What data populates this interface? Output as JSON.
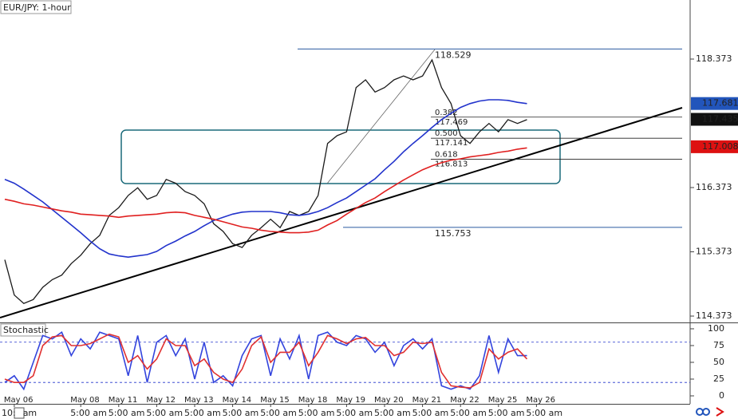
{
  "chart_data": [
    {
      "type": "line",
      "title": "EUR/JPY: 1-hour",
      "categories": [
        null,
        "May 06",
        null,
        null,
        null,
        null,
        null,
        null,
        "May 08",
        null,
        null,
        null,
        "May 11",
        null,
        null,
        null,
        "May 12",
        null,
        null,
        null,
        "May 13",
        null,
        null,
        null,
        "May 14",
        null,
        null,
        null,
        "May 15",
        null,
        null,
        null,
        "May 18",
        null,
        null,
        null,
        "May 19",
        null,
        null,
        null,
        "May 20",
        null,
        null,
        null,
        "May 21",
        null,
        null,
        null,
        "May 22",
        null,
        null,
        null,
        "May 25",
        null,
        null,
        null,
        "May 26"
      ],
      "time_labels": [
        "10:",
        null,
        null,
        "am",
        null,
        null,
        null,
        null,
        "5:00 am",
        null,
        null,
        null,
        "5:00 am",
        null,
        null,
        null,
        "5:00 am",
        null,
        null,
        null,
        "5:00 am",
        null,
        null,
        null,
        "5:00 am",
        null,
        null,
        null,
        "5:00 am",
        null,
        null,
        null,
        "5:00 am",
        null,
        null,
        null,
        "5:00 am",
        null,
        null,
        null,
        "5:00 am",
        null,
        null,
        null,
        "5:00 am",
        null,
        null,
        null,
        "5:00 am",
        null,
        null,
        null,
        "5:00 am",
        null,
        null,
        null,
        "5:00 am"
      ],
      "series": [
        {
          "color": "#1a1a1a",
          "values": [
            115.25,
            114.7,
            114.57,
            114.63,
            114.82,
            114.94,
            115.01,
            115.19,
            115.32,
            115.5,
            115.63,
            115.94,
            116.06,
            116.25,
            116.37,
            116.19,
            116.25,
            116.5,
            116.44,
            116.31,
            116.25,
            116.12,
            115.81,
            115.69,
            115.5,
            115.44,
            115.63,
            115.75,
            115.88,
            115.75,
            116.0,
            115.94,
            116.0,
            116.25,
            117.06,
            117.18,
            117.24,
            117.93,
            118.05,
            117.86,
            117.93,
            118.05,
            118.11,
            118.05,
            118.11,
            118.36,
            117.93,
            117.68,
            117.18,
            117.06,
            117.24,
            117.37,
            117.24,
            117.43,
            117.37,
            117.43,
            null
          ]
        },
        {
          "color": "#2233cc",
          "values": [
            116.5,
            116.44,
            116.35,
            116.25,
            116.15,
            116.03,
            115.91,
            115.79,
            115.67,
            115.54,
            115.42,
            115.34,
            115.31,
            115.29,
            115.31,
            115.33,
            115.38,
            115.47,
            115.54,
            115.62,
            115.69,
            115.78,
            115.86,
            115.91,
            115.96,
            115.99,
            116.0,
            116.0,
            116.0,
            115.98,
            115.95,
            115.94,
            115.96,
            116.0,
            116.06,
            116.14,
            116.21,
            116.31,
            116.41,
            116.51,
            116.65,
            116.78,
            116.93,
            117.06,
            117.18,
            117.31,
            117.43,
            117.53,
            117.62,
            117.68,
            117.72,
            117.74,
            117.74,
            117.73,
            117.7,
            117.68,
            null
          ]
        },
        {
          "color": "#e02020",
          "values": [
            116.19,
            116.16,
            116.12,
            116.1,
            116.07,
            116.04,
            116.01,
            115.99,
            115.96,
            115.95,
            115.94,
            115.93,
            115.91,
            115.93,
            115.94,
            115.95,
            115.96,
            115.98,
            115.99,
            115.98,
            115.94,
            115.91,
            115.88,
            115.84,
            115.8,
            115.76,
            115.74,
            115.71,
            115.69,
            115.68,
            115.67,
            115.67,
            115.68,
            115.71,
            115.79,
            115.86,
            115.96,
            116.05,
            116.14,
            116.21,
            116.31,
            116.4,
            116.49,
            116.57,
            116.65,
            116.71,
            116.76,
            116.8,
            116.82,
            116.85,
            116.87,
            116.89,
            116.92,
            116.94,
            116.97,
            116.99,
            null
          ]
        }
      ],
      "ylim": [
        114.274,
        119.292
      ],
      "yticks": [
        114.373,
        115.373,
        116.373,
        118.373
      ],
      "levels": [
        {
          "value": 118.529,
          "color": "#2a5aa0"
        },
        {
          "value": 115.753,
          "color": "#2a5aa0"
        }
      ],
      "fib_levels": [
        {
          "ratio": "0.382",
          "value": 117.469
        },
        {
          "ratio": "0.500",
          "value": 117.141
        },
        {
          "ratio": "0.618",
          "value": 116.813
        }
      ],
      "price_tags": [
        {
          "value": 117.681,
          "color": "#2255bb"
        },
        {
          "value": 117.435,
          "color": "#111111"
        },
        {
          "value": 117.008,
          "color": "#dd1111"
        }
      ]
    },
    {
      "type": "line",
      "title": "Stochastic",
      "series": [
        {
          "color": "#3344dd",
          "values": [
            20,
            30,
            10,
            50,
            90,
            85,
            95,
            60,
            85,
            70,
            95,
            90,
            85,
            30,
            90,
            20,
            80,
            90,
            60,
            85,
            25,
            80,
            20,
            30,
            15,
            60,
            85,
            90,
            30,
            85,
            55,
            90,
            25,
            90,
            95,
            80,
            75,
            90,
            85,
            65,
            80,
            45,
            75,
            85,
            70,
            85,
            15,
            10,
            15,
            10,
            30,
            90,
            35,
            85,
            60,
            60,
            null
          ]
        },
        {
          "color": "#e03030",
          "values": [
            25,
            20,
            20,
            30,
            75,
            88,
            90,
            75,
            75,
            78,
            85,
            92,
            88,
            50,
            60,
            40,
            55,
            85,
            75,
            75,
            45,
            55,
            35,
            25,
            20,
            40,
            75,
            88,
            50,
            65,
            65,
            80,
            45,
            65,
            90,
            85,
            78,
            85,
            87,
            75,
            75,
            60,
            65,
            80,
            78,
            80,
            35,
            15,
            13,
            12,
            20,
            70,
            55,
            65,
            70,
            55,
            null
          ]
        }
      ],
      "ylim": [
        -11.9,
        108.3
      ],
      "yticks": [
        0,
        25,
        50,
        75,
        100
      ],
      "bands": [
        80,
        20
      ]
    }
  ]
}
